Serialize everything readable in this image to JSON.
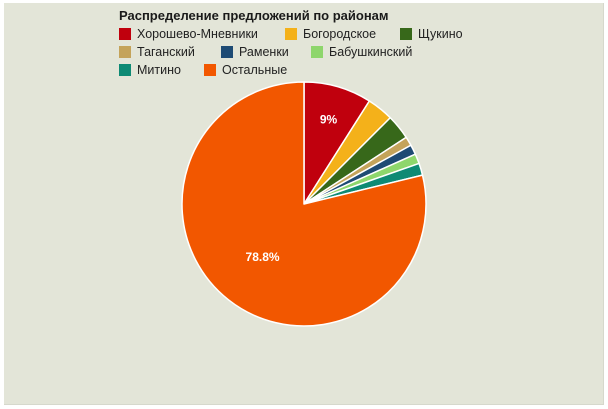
{
  "chart_data": {
    "type": "pie",
    "title": "Распределение предложений по районам",
    "slices": [
      {
        "label": "Хорошево-Мневники",
        "value": 9.0,
        "color": "#c0000d",
        "data_label": "9%"
      },
      {
        "label": "Богородское",
        "value": 3.5,
        "color": "#f4b11a",
        "data_label": ""
      },
      {
        "label": "Щукино",
        "value": 3.3,
        "color": "#37681a",
        "data_label": ""
      },
      {
        "label": "Таганский",
        "value": 1.2,
        "color": "#c4a35a",
        "data_label": ""
      },
      {
        "label": "Раменки",
        "value": 1.3,
        "color": "#1e4b74",
        "data_label": ""
      },
      {
        "label": "Бабушкинский",
        "value": 1.3,
        "color": "#8ed66c",
        "data_label": ""
      },
      {
        "label": "Митино",
        "value": 1.6,
        "color": "#0e8a74",
        "data_label": ""
      },
      {
        "label": "Остальные",
        "value": 78.8,
        "color": "#f25700",
        "data_label": "78.8%"
      }
    ],
    "legend_position": "top-left",
    "background_color": "#e3e5d8"
  }
}
